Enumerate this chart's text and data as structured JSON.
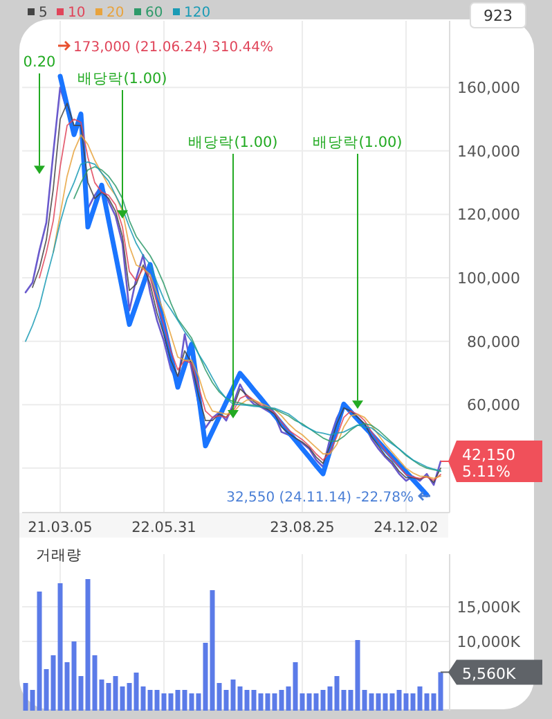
{
  "chart_data": [
    {
      "type": "line",
      "categories": [
        null,
        null,
        null,
        null,
        null,
        "21.03.05",
        null,
        null,
        null,
        null,
        null,
        null,
        null,
        null,
        null,
        null,
        null,
        null,
        null,
        null,
        "22.05.31",
        null,
        null,
        null,
        null,
        null,
        null,
        null,
        null,
        null,
        null,
        null,
        null,
        null,
        null,
        null,
        null,
        null,
        null,
        null,
        "23.08.25",
        null,
        null,
        null,
        null,
        null,
        null,
        null,
        null,
        null,
        null,
        null,
        null,
        null,
        null,
        "24.12.02",
        null,
        null,
        null,
        null,
        null
      ],
      "ylim": [
        26000,
        181000
      ],
      "yticks": [
        {
          "value": 40000,
          "label": null
        },
        {
          "value": 60000,
          "label": "60,000"
        },
        {
          "value": 80000,
          "label": "80,000"
        },
        {
          "value": 100000,
          "label": "100,000"
        },
        {
          "value": 120000,
          "label": "120,000"
        },
        {
          "value": 140000,
          "label": "140,000"
        },
        {
          "value": 160000,
          "label": "160,000"
        }
      ],
      "grid": true,
      "legend": "top left",
      "series": [
        {
          "color": "#6a5acd",
          "values": [
            95400,
            98500,
            108600,
            117400,
            139300,
            160000,
            152500,
            146000,
            150000,
            121800,
            126000,
            129200,
            124000,
            119500,
            110800,
            89700,
            99800,
            107200,
            95400,
            86600,
            80000,
            71200,
            66800,
            82200,
            71200,
            60200,
            52700,
            55800,
            57600,
            55000,
            60200,
            66400,
            62400,
            60200,
            59300,
            58000,
            56700,
            51400,
            50500,
            49200,
            47900,
            46100,
            42600,
            40400,
            49200,
            55800,
            60200,
            57100,
            55800,
            53600,
            49200,
            46100,
            43500,
            41300,
            38200,
            36000,
            37400,
            36000,
            38200,
            34700,
            42150
          ],
          "value_labels": [
            null,
            null,
            null,
            null,
            null,
            null,
            null,
            null,
            null,
            null,
            null,
            null,
            null,
            null,
            null,
            null,
            null,
            null,
            null,
            null,
            null,
            null,
            null,
            null,
            null,
            null,
            null,
            null,
            null,
            null,
            null,
            null,
            null,
            null,
            null,
            null,
            null,
            null,
            null,
            null,
            null,
            null,
            null,
            null,
            null,
            null,
            null,
            null,
            null,
            null,
            null,
            null,
            null,
            null,
            null,
            null,
            null,
            null,
            null,
            null,
            "42,150 5.11%"
          ]
        },
        {
          "color": "#1a75ff",
          "values": [
            null,
            null,
            null,
            null,
            null,
            163500,
            154300,
            145100,
            151600,
            116000,
            122600,
            129200,
            118200,
            107300,
            96300,
            85300,
            91600,
            97900,
            104200,
            94500,
            84900,
            75200,
            65500,
            72300,
            79100,
            63100,
            47000,
            51600,
            56200,
            60800,
            65300,
            69900,
            67300,
            64600,
            62000,
            59300,
            56700,
            54000,
            51400,
            48800,
            46100,
            43500,
            40800,
            38200,
            45500,
            52900,
            60200,
            57800,
            55400,
            53000,
            50700,
            48300,
            45900,
            43500,
            41100,
            38800,
            36400,
            34000,
            31600,
            null,
            null
          ]
        },
        {
          "name": "5",
          "color": "#444444",
          "values": [
            null,
            97000,
            103000,
            112000,
            128000,
            150000,
            155000,
            148000,
            148000,
            130000,
            125000,
            127000,
            125000,
            121000,
            113000,
            96000,
            98000,
            104000,
            98000,
            89000,
            82000,
            74000,
            69000,
            77000,
            73000,
            63000,
            55000,
            55000,
            57000,
            56000,
            59000,
            65000,
            63000,
            61000,
            59500,
            58500,
            57000,
            53000,
            51000,
            49500,
            48200,
            46500,
            43500,
            41500,
            47000,
            54000,
            59000,
            58000,
            56000,
            54000,
            50000,
            47000,
            44000,
            42000,
            39000,
            37000,
            37000,
            36500,
            37500,
            35500,
            40000
          ]
        },
        {
          "name": "10",
          "color": "#e0455a",
          "values": [
            null,
            null,
            100000,
            108000,
            118000,
            135000,
            148000,
            150000,
            149000,
            138000,
            130000,
            127000,
            126000,
            123000,
            116000,
            102000,
            99000,
            103000,
            100000,
            92000,
            85000,
            77000,
            71000,
            74000,
            73000,
            66000,
            58000,
            56000,
            56500,
            56000,
            58000,
            62000,
            63000,
            61500,
            60000,
            59000,
            57500,
            54500,
            52000,
            50500,
            49000,
            47000,
            44500,
            42500,
            45000,
            50000,
            56000,
            58000,
            57000,
            55000,
            51500,
            48500,
            45500,
            43000,
            40500,
            38000,
            37200,
            36800,
            37200,
            36200,
            38000
          ]
        },
        {
          "name": "20",
          "color": "#e8a33d",
          "values": [
            null,
            null,
            null,
            null,
            108000,
            120000,
            132000,
            140000,
            145000,
            142000,
            137000,
            133000,
            129000,
            126000,
            121000,
            110000,
            104000,
            103000,
            101000,
            95000,
            89000,
            82000,
            75000,
            74000,
            74000,
            69000,
            62000,
            58000,
            57500,
            57000,
            57500,
            60000,
            61500,
            61500,
            60500,
            59500,
            58500,
            56500,
            54000,
            52000,
            50500,
            48500,
            46500,
            44500,
            44500,
            47500,
            53000,
            56500,
            57000,
            56000,
            53500,
            50500,
            47500,
            45000,
            42500,
            40000,
            38500,
            37500,
            37300,
            36800,
            37500
          ]
        },
        {
          "name": "60",
          "color": "#2e9a6a",
          "values": [
            null,
            null,
            null,
            null,
            null,
            null,
            null,
            125000,
            130000,
            134000,
            135000,
            134000,
            132000,
            129000,
            125000,
            118000,
            113000,
            110000,
            107000,
            103000,
            98000,
            92000,
            87000,
            84000,
            81000,
            76000,
            71000,
            67000,
            64000,
            62000,
            61000,
            60500,
            60000,
            59800,
            59500,
            59000,
            58500,
            57500,
            56500,
            55000,
            54000,
            52500,
            51000,
            49500,
            48500,
            48500,
            50000,
            52000,
            53500,
            54000,
            53500,
            52000,
            50000,
            48000,
            46000,
            44000,
            42500,
            41000,
            40000,
            39500,
            39000
          ]
        },
        {
          "name": "120",
          "color": "#1a9bb5",
          "values": [
            80000,
            85000,
            91000,
            99800,
            108000,
            117400,
            125000,
            130000,
            135800,
            136500,
            135800,
            133000,
            130500,
            126000,
            121800,
            116000,
            110800,
            107000,
            104200,
            98500,
            93200,
            90000,
            86600,
            83000,
            80000,
            76000,
            72500,
            68500,
            64600,
            62000,
            60200,
            60000,
            59800,
            59500,
            59300,
            59100,
            58900,
            58000,
            57100,
            55500,
            53600,
            52500,
            51400,
            51000,
            50500,
            51000,
            51400,
            52500,
            53600,
            53000,
            52700,
            51000,
            49200,
            47600,
            46100,
            44300,
            42600,
            41500,
            40400,
            39700,
            39100
          ]
        },
        {
          "type": "scatter",
          "marker": "triangle",
          "name": "0.20",
          "color": "#22aa22",
          "values": [
            null,
            null,
            134000,
            null,
            null,
            null,
            null,
            null,
            null,
            null,
            null,
            null,
            null,
            null,
            null,
            null,
            null,
            null,
            null,
            null,
            null,
            null,
            null,
            null,
            null,
            null,
            null,
            null,
            null,
            null,
            null,
            null,
            null,
            null,
            null,
            null,
            null,
            null,
            null,
            null,
            null,
            null,
            null,
            null,
            null,
            null,
            null,
            null,
            null,
            null,
            null,
            null,
            null,
            null,
            null,
            null,
            null,
            null,
            null,
            null,
            null
          ]
        },
        {
          "type": "scatter",
          "marker": "triangle",
          "name": "배당락(1.00)",
          "color": "#22aa22",
          "values": [
            null,
            null,
            null,
            null,
            null,
            null,
            null,
            null,
            null,
            null,
            null,
            null,
            null,
            null,
            120000,
            null,
            null,
            null,
            null,
            null,
            null,
            null,
            null,
            null,
            null,
            null,
            null,
            null,
            null,
            null,
            57000,
            null,
            null,
            null,
            null,
            null,
            null,
            null,
            null,
            null,
            null,
            null,
            null,
            null,
            null,
            null,
            null,
            null,
            60000,
            null,
            null,
            null,
            null,
            null,
            null,
            null,
            null,
            null,
            null,
            null,
            null
          ]
        }
      ],
      "annotations": [
        "173,000 (21.06.24) 310.44%",
        "32,550 (24.11.14) -22.78%",
        "923"
      ]
    },
    {
      "type": "bar",
      "title": "거래량",
      "categories": [
        null,
        null,
        null,
        null,
        null,
        "21.03.05",
        null,
        null,
        null,
        null,
        null,
        null,
        null,
        null,
        null,
        null,
        null,
        null,
        null,
        null,
        "22.05.31",
        null,
        null,
        null,
        null,
        null,
        null,
        null,
        null,
        null,
        null,
        null,
        null,
        null,
        null,
        null,
        null,
        null,
        null,
        null,
        "23.08.25",
        null,
        null,
        null,
        null,
        null,
        null,
        null,
        null,
        null,
        null,
        null,
        null,
        null,
        null,
        "24.12.02",
        null,
        null,
        null,
        null,
        null
      ],
      "tick_labels": "y",
      "ylim": [
        0,
        22600
      ],
      "yticks": [
        {
          "value": 10000,
          "label": "10,000K"
        },
        {
          "value": 15000,
          "label": "15,000K"
        }
      ],
      "grid": true,
      "color": "#5b7be8",
      "values": [
        4000,
        3000,
        17200,
        6000,
        8000,
        18400,
        7000,
        10000,
        5000,
        19000,
        8000,
        4500,
        4000,
        5000,
        3500,
        4000,
        5500,
        3500,
        3000,
        3000,
        2500,
        2500,
        3000,
        3000,
        2500,
        2500,
        9800,
        17400,
        4000,
        3000,
        4500,
        3500,
        3000,
        3000,
        2500,
        2500,
        2500,
        3000,
        3500,
        7000,
        2500,
        2500,
        2500,
        3000,
        3500,
        5000,
        3000,
        3000,
        10200,
        3000,
        2500,
        2500,
        2500,
        2500,
        3000,
        2500,
        2500,
        3500,
        2500,
        2500,
        5560
      ],
      "annotations": [
        "5,560K"
      ]
    }
  ]
}
